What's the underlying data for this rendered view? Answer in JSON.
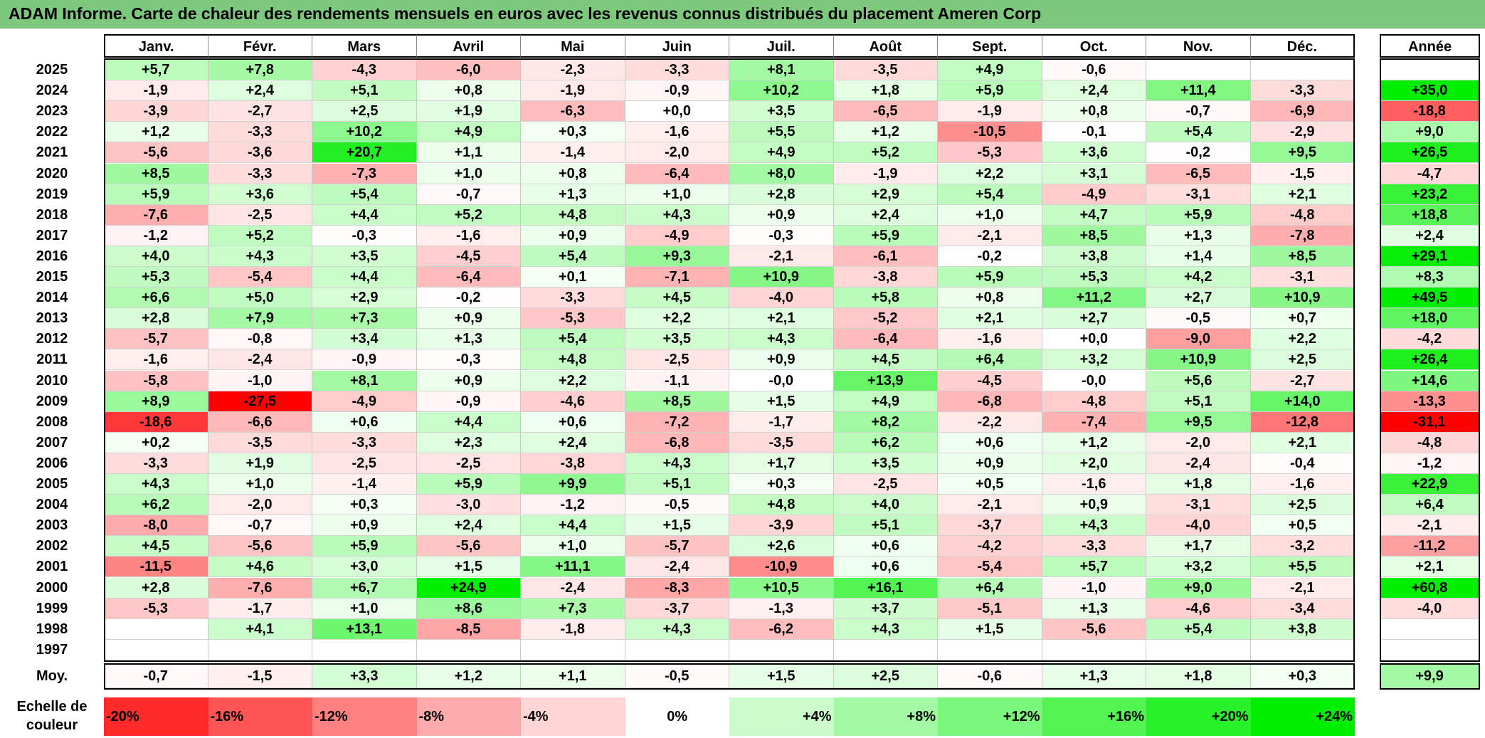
{
  "title": "ADAM Informe. Carte de chaleur des rendements mensuels en euros avec les revenus connus distribués du placement Ameren Corp",
  "chart_data": {
    "type": "heatmap",
    "title": "ADAM Informe. Carte de chaleur des rendements mensuels en euros avec les revenus connus distribués du placement Ameren Corp",
    "months": [
      "Janv.",
      "Févr.",
      "Mars",
      "Avril",
      "Mai",
      "Juin",
      "Juil.",
      "Août",
      "Sept.",
      "Oct.",
      "Nov.",
      "Déc."
    ],
    "year_header": "Année",
    "rows": [
      {
        "year": "2025",
        "values": [
          "+5,7",
          "+7,8",
          "-4,3",
          "-6,0",
          "-2,3",
          "-3,3",
          "+8,1",
          "-3,5",
          "+4,9",
          "-0,6",
          "",
          ""
        ],
        "annual": ""
      },
      {
        "year": "2024",
        "values": [
          "-1,9",
          "+2,4",
          "+5,1",
          "+0,8",
          "-1,9",
          "-0,9",
          "+10,2",
          "+1,8",
          "+5,9",
          "+2,4",
          "+11,4",
          "-3,3"
        ],
        "annual": "+35,0"
      },
      {
        "year": "2023",
        "values": [
          "-3,9",
          "-2,7",
          "+2,5",
          "+1,9",
          "-6,3",
          "+0,0",
          "+3,5",
          "-6,5",
          "-1,9",
          "+0,8",
          "-0,7",
          "-6,9"
        ],
        "annual": "-18,8"
      },
      {
        "year": "2022",
        "values": [
          "+1,2",
          "-3,3",
          "+10,2",
          "+4,9",
          "+0,3",
          "-1,6",
          "+5,5",
          "+1,2",
          "-10,5",
          "-0,1",
          "+5,4",
          "-2,9"
        ],
        "annual": "+9,0"
      },
      {
        "year": "2021",
        "values": [
          "-5,6",
          "-3,6",
          "+20,7",
          "+1,1",
          "-1,4",
          "-2,0",
          "+4,9",
          "+5,2",
          "-5,3",
          "+3,6",
          "-0,2",
          "+9,5"
        ],
        "annual": "+26,5"
      },
      {
        "year": "2020",
        "values": [
          "+8,5",
          "-3,3",
          "-7,3",
          "+1,0",
          "+0,8",
          "-6,4",
          "+8,0",
          "-1,9",
          "+2,2",
          "+3,1",
          "-6,5",
          "-1,5"
        ],
        "annual": "-4,7"
      },
      {
        "year": "2019",
        "values": [
          "+5,9",
          "+3,6",
          "+5,4",
          "-0,7",
          "+1,3",
          "+1,0",
          "+2,8",
          "+2,9",
          "+5,4",
          "-4,9",
          "-3,1",
          "+2,1"
        ],
        "annual": "+23,2"
      },
      {
        "year": "2018",
        "values": [
          "-7,6",
          "-2,5",
          "+4,4",
          "+5,2",
          "+4,8",
          "+4,3",
          "+0,9",
          "+2,4",
          "+1,0",
          "+4,7",
          "+5,9",
          "-4,8"
        ],
        "annual": "+18,8"
      },
      {
        "year": "2017",
        "values": [
          "-1,2",
          "+5,2",
          "-0,3",
          "-1,6",
          "+0,9",
          "-4,9",
          "-0,3",
          "+5,9",
          "-2,1",
          "+8,5",
          "+1,3",
          "-7,8"
        ],
        "annual": "+2,4"
      },
      {
        "year": "2016",
        "values": [
          "+4,0",
          "+4,3",
          "+3,5",
          "-4,5",
          "+5,4",
          "+9,3",
          "-2,1",
          "-6,1",
          "-0,2",
          "+3,8",
          "+1,4",
          "+8,5"
        ],
        "annual": "+29,1"
      },
      {
        "year": "2015",
        "values": [
          "+5,3",
          "-5,4",
          "+4,4",
          "-6,4",
          "+0,1",
          "-7,1",
          "+10,9",
          "-3,8",
          "+5,9",
          "+5,3",
          "+4,2",
          "-3,1"
        ],
        "annual": "+8,3"
      },
      {
        "year": "2014",
        "values": [
          "+6,6",
          "+5,0",
          "+2,9",
          "-0,2",
          "-3,3",
          "+4,5",
          "-4,0",
          "+5,8",
          "+0,8",
          "+11,2",
          "+2,7",
          "+10,9"
        ],
        "annual": "+49,5"
      },
      {
        "year": "2013",
        "values": [
          "+2,8",
          "+7,9",
          "+7,3",
          "+0,9",
          "-5,3",
          "+2,2",
          "+2,1",
          "-5,2",
          "+2,1",
          "+2,7",
          "-0,5",
          "+0,7"
        ],
        "annual": "+18,0"
      },
      {
        "year": "2012",
        "values": [
          "-5,7",
          "-0,8",
          "+3,4",
          "+1,3",
          "+5,4",
          "+3,5",
          "+4,3",
          "-6,4",
          "-1,6",
          "+0,0",
          "-9,0",
          "+2,2"
        ],
        "annual": "-4,2"
      },
      {
        "year": "2011",
        "values": [
          "-1,6",
          "-2,4",
          "-0,9",
          "-0,3",
          "+4,8",
          "-2,5",
          "+0,9",
          "+4,5",
          "+6,4",
          "+3,2",
          "+10,9",
          "+2,5"
        ],
        "annual": "+26,4"
      },
      {
        "year": "2010",
        "values": [
          "-5,8",
          "-1,0",
          "+8,1",
          "+0,9",
          "+2,2",
          "-1,1",
          "-0,0",
          "+13,9",
          "-4,5",
          "-0,0",
          "+5,6",
          "-2,7"
        ],
        "annual": "+14,6"
      },
      {
        "year": "2009",
        "values": [
          "+8,9",
          "-27,5",
          "-4,9",
          "-0,9",
          "-4,6",
          "+8,5",
          "+1,5",
          "+4,9",
          "-6,8",
          "-4,8",
          "+5,1",
          "+14,0"
        ],
        "annual": "-13,3"
      },
      {
        "year": "2008",
        "values": [
          "-18,6",
          "-6,6",
          "+0,6",
          "+4,4",
          "+0,6",
          "-7,2",
          "-1,7",
          "+8,2",
          "-2,2",
          "-7,4",
          "+9,5",
          "-12,8"
        ],
        "annual": "-31,1"
      },
      {
        "year": "2007",
        "values": [
          "+0,2",
          "-3,5",
          "-3,3",
          "+2,3",
          "+2,4",
          "-6,8",
          "-3,5",
          "+6,2",
          "+0,6",
          "+1,2",
          "-2,0",
          "+2,1"
        ],
        "annual": "-4,8"
      },
      {
        "year": "2006",
        "values": [
          "-3,3",
          "+1,9",
          "-2,5",
          "-2,5",
          "-3,8",
          "+4,3",
          "+1,7",
          "+3,5",
          "+0,9",
          "+2,0",
          "-2,4",
          "-0,4"
        ],
        "annual": "-1,2"
      },
      {
        "year": "2005",
        "values": [
          "+4,3",
          "+1,0",
          "-1,4",
          "+5,9",
          "+9,9",
          "+5,1",
          "+0,3",
          "-2,5",
          "+0,5",
          "-1,6",
          "+1,8",
          "-1,6"
        ],
        "annual": "+22,9"
      },
      {
        "year": "2004",
        "values": [
          "+6,2",
          "-2,0",
          "+0,3",
          "-3,0",
          "-1,2",
          "-0,5",
          "+4,8",
          "+4,0",
          "-2,1",
          "+0,9",
          "-3,1",
          "+2,5"
        ],
        "annual": "+6,4"
      },
      {
        "year": "2003",
        "values": [
          "-8,0",
          "-0,7",
          "+0,9",
          "+2,4",
          "+4,4",
          "+1,5",
          "-3,9",
          "+5,1",
          "-3,7",
          "+4,3",
          "-4,0",
          "+0,5"
        ],
        "annual": "-2,1"
      },
      {
        "year": "2002",
        "values": [
          "+4,5",
          "-5,6",
          "+5,9",
          "-5,6",
          "+1,0",
          "-5,7",
          "+2,6",
          "+0,6",
          "-4,2",
          "-3,3",
          "+1,7",
          "-3,2"
        ],
        "annual": "-11,2"
      },
      {
        "year": "2001",
        "values": [
          "-11,5",
          "+4,6",
          "+3,0",
          "+1,5",
          "+11,1",
          "-2,4",
          "-10,9",
          "+0,6",
          "-5,4",
          "+5,7",
          "+3,2",
          "+5,5"
        ],
        "annual": "+2,1"
      },
      {
        "year": "2000",
        "values": [
          "+2,8",
          "-7,6",
          "+6,7",
          "+24,9",
          "-2,4",
          "-8,3",
          "+10,5",
          "+16,1",
          "+6,4",
          "-1,0",
          "+9,0",
          "-2,1"
        ],
        "annual": "+60,8"
      },
      {
        "year": "1999",
        "values": [
          "-5,3",
          "-1,7",
          "+1,0",
          "+8,6",
          "+7,3",
          "-3,7",
          "-1,3",
          "+3,7",
          "-5,1",
          "+1,3",
          "-4,6",
          "-3,4"
        ],
        "annual": "-4,0"
      },
      {
        "year": "1998",
        "values": [
          "",
          "+4,1",
          "+13,1",
          "-8,5",
          "-1,8",
          "+4,3",
          "-6,2",
          "+4,3",
          "+1,5",
          "-5,6",
          "+5,4",
          "+3,8"
        ],
        "annual": ""
      },
      {
        "year": "1997",
        "values": [
          "",
          "",
          "",
          "",
          "",
          "",
          "",
          "",
          "",
          "",
          "",
          ""
        ],
        "annual": ""
      }
    ],
    "average": {
      "label": "Moy.",
      "values": [
        "-0,7",
        "-1,5",
        "+3,3",
        "+1,2",
        "+1,1",
        "-0,5",
        "+1,5",
        "+2,5",
        "-0,6",
        "+1,3",
        "+1,8",
        "+0,3"
      ],
      "annual": "+9,9"
    },
    "color_scale": {
      "label": "Echelle de couleur",
      "stops": [
        "-20%",
        "-16%",
        "-12%",
        "-8%",
        "-4%",
        "0%",
        "+4%",
        "+8%",
        "+12%",
        "+16%",
        "+20%",
        "+24%"
      ],
      "stop_values": [
        -20,
        -16,
        -12,
        -8,
        -4,
        0,
        4,
        8,
        12,
        16,
        20,
        24
      ],
      "negative_color": "#ff0000",
      "positive_color": "#00ee00",
      "neutral_color": "#ffffff"
    }
  }
}
